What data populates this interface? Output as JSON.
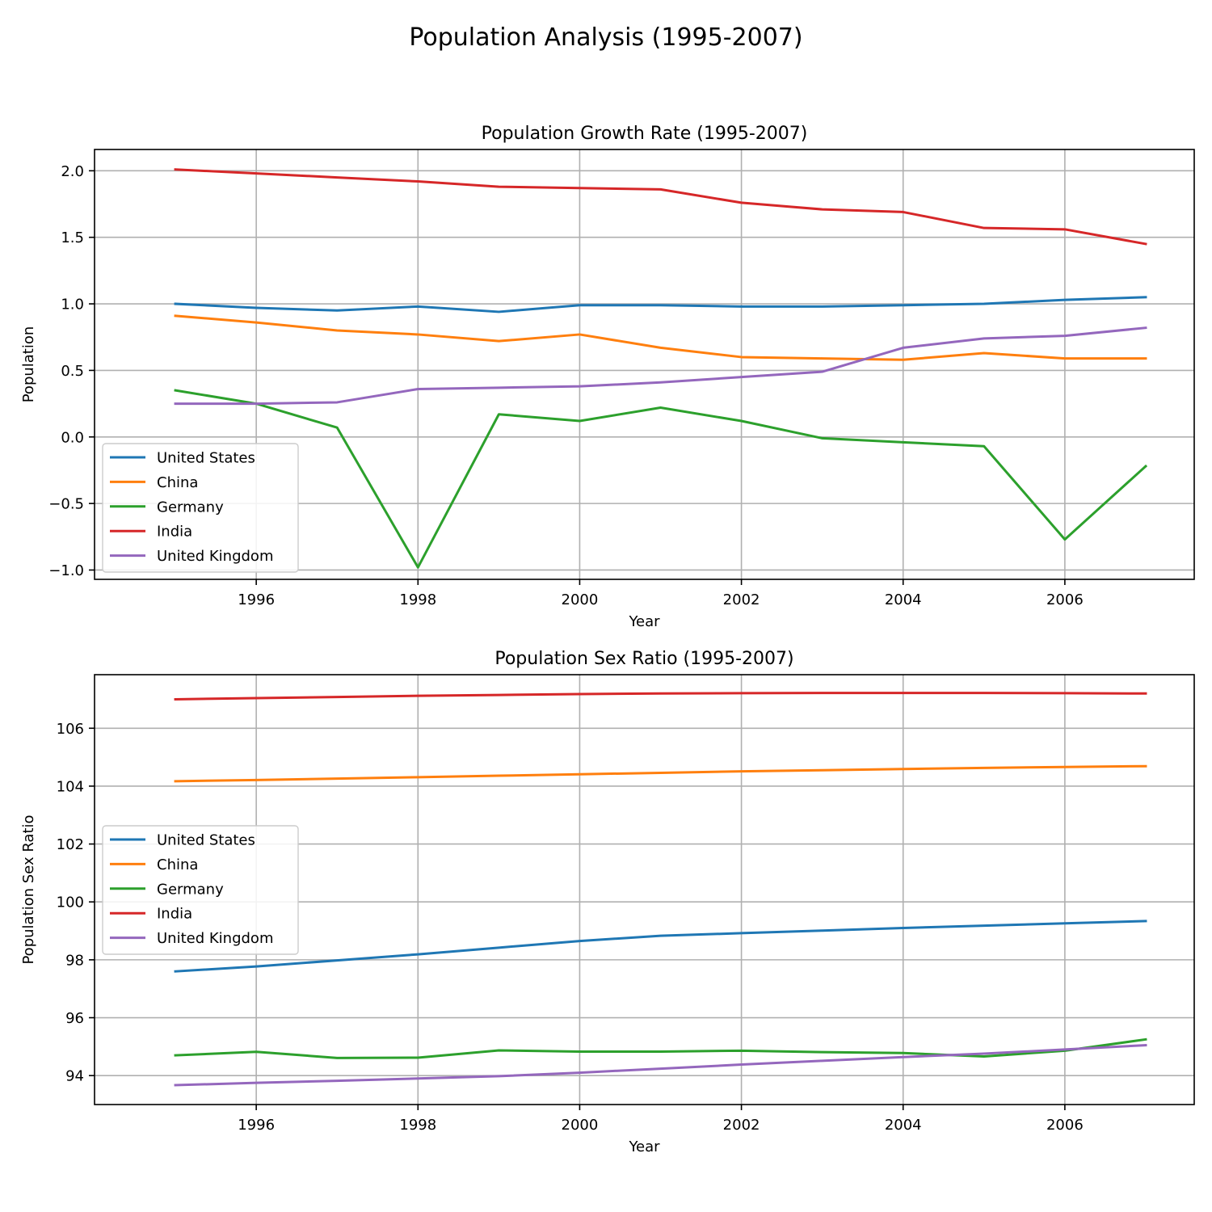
{
  "figure": {
    "title": "Population Analysis (1995-2007)"
  },
  "chart_data": [
    {
      "type": "line",
      "title": "Population Growth Rate (1995-2007)",
      "xlabel": "Year",
      "ylabel": "Population",
      "x": [
        1995,
        1996,
        1997,
        1998,
        1999,
        2000,
        2001,
        2002,
        2003,
        2004,
        2005,
        2006,
        2007
      ],
      "xlim": [
        1994.0,
        2007.6
      ],
      "ylim": [
        -1.07,
        2.16
      ],
      "xticks": [
        1996,
        1998,
        2000,
        2002,
        2004,
        2006
      ],
      "yticks": [
        2.0,
        1.5,
        1.0,
        0.5,
        0.0,
        -0.5,
        -1.0
      ],
      "ytick_labels": [
        "2.0",
        "1.5",
        "1.0",
        "0.5",
        "0.0",
        "−0.5",
        "−1.0"
      ],
      "grid": true,
      "legend_position": "lower-left",
      "series": [
        {
          "name": "United States",
          "color": "#1f77b4",
          "values": [
            1.0,
            0.97,
            0.95,
            0.98,
            0.94,
            0.99,
            0.99,
            0.98,
            0.98,
            0.99,
            1.0,
            1.03,
            1.05
          ]
        },
        {
          "name": "China",
          "color": "#ff7f0e",
          "values": [
            0.91,
            0.86,
            0.8,
            0.77,
            0.72,
            0.77,
            0.67,
            0.6,
            0.59,
            0.58,
            0.63,
            0.59,
            0.59
          ]
        },
        {
          "name": "Germany",
          "color": "#2ca02c",
          "values": [
            0.35,
            0.25,
            0.07,
            -0.98,
            0.17,
            0.12,
            0.22,
            0.12,
            -0.01,
            -0.04,
            -0.07,
            -0.77,
            -0.22
          ]
        },
        {
          "name": "India",
          "color": "#d62728",
          "values": [
            2.01,
            1.98,
            1.95,
            1.92,
            1.88,
            1.87,
            1.86,
            1.76,
            1.71,
            1.69,
            1.57,
            1.56,
            1.45
          ]
        },
        {
          "name": "United Kingdom",
          "color": "#9467bd",
          "values": [
            0.25,
            0.25,
            0.26,
            0.36,
            0.37,
            0.38,
            0.41,
            0.45,
            0.49,
            0.67,
            0.74,
            0.76,
            0.82
          ]
        }
      ]
    },
    {
      "type": "line",
      "title": "Population Sex Ratio (1995-2007)",
      "xlabel": "Year",
      "ylabel": "Population Sex Ratio",
      "x": [
        1995,
        1996,
        1997,
        1998,
        1999,
        2000,
        2001,
        2002,
        2003,
        2004,
        2005,
        2006,
        2007
      ],
      "xlim": [
        1994.0,
        2007.6
      ],
      "ylim": [
        93.0,
        107.85
      ],
      "xticks": [
        1996,
        1998,
        2000,
        2002,
        2004,
        2006
      ],
      "yticks": [
        106,
        104,
        102,
        100,
        98,
        96,
        94
      ],
      "ytick_labels": [
        "106",
        "104",
        "102",
        "100",
        "98",
        "96",
        "94"
      ],
      "grid": true,
      "legend_position": "center-left",
      "series": [
        {
          "name": "United States",
          "color": "#1f77b4",
          "values": [
            97.6,
            97.77,
            97.98,
            98.19,
            98.42,
            98.65,
            98.83,
            98.92,
            99.01,
            99.1,
            99.18,
            99.26,
            99.34
          ]
        },
        {
          "name": "China",
          "color": "#ff7f0e",
          "values": [
            104.17,
            104.21,
            104.26,
            104.31,
            104.36,
            104.41,
            104.46,
            104.51,
            104.55,
            104.59,
            104.63,
            104.66,
            104.69
          ]
        },
        {
          "name": "Germany",
          "color": "#2ca02c",
          "values": [
            94.7,
            94.82,
            94.61,
            94.62,
            94.87,
            94.83,
            94.83,
            94.86,
            94.81,
            94.78,
            94.66,
            94.86,
            95.25
          ]
        },
        {
          "name": "India",
          "color": "#d62728",
          "values": [
            107.0,
            107.04,
            107.08,
            107.12,
            107.15,
            107.18,
            107.2,
            107.21,
            107.22,
            107.22,
            107.22,
            107.21,
            107.2
          ]
        },
        {
          "name": "United Kingdom",
          "color": "#9467bd",
          "values": [
            93.67,
            93.75,
            93.82,
            93.9,
            93.98,
            94.1,
            94.24,
            94.38,
            94.51,
            94.64,
            94.76,
            94.9,
            95.05
          ]
        }
      ]
    }
  ]
}
